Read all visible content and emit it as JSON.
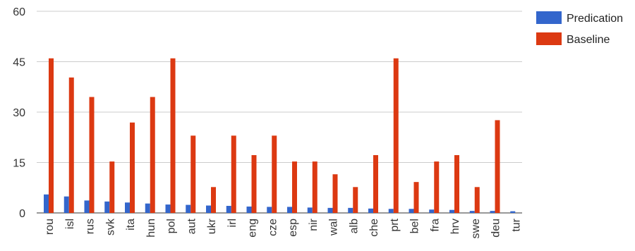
{
  "chart_data": {
    "type": "bar",
    "categories": [
      "rou",
      "isl",
      "rus",
      "svk",
      "ita",
      "hun",
      "pol",
      "aut",
      "ukr",
      "irl",
      "eng",
      "cze",
      "esp",
      "nir",
      "wal",
      "alb",
      "che",
      "prt",
      "bel",
      "fra",
      "hrv",
      "swe",
      "deu",
      "tur"
    ],
    "series": [
      {
        "name": "Predication",
        "color": "#3366cc",
        "values": [
          5.5,
          4.9,
          3.7,
          3.4,
          3.1,
          2.8,
          2.5,
          2.4,
          2.2,
          2.1,
          1.9,
          1.8,
          1.8,
          1.6,
          1.5,
          1.5,
          1.3,
          1.2,
          1.2,
          1.0,
          0.9,
          0.6,
          0.6,
          0.5
        ]
      },
      {
        "name": "Baseline",
        "color": "#dc3912",
        "values": [
          46,
          40.3,
          34.5,
          15.3,
          26.9,
          34.5,
          46,
          23,
          7.7,
          23,
          17.2,
          23,
          15.3,
          15.3,
          11.5,
          7.7,
          17.2,
          46,
          9.2,
          15.3,
          17.2,
          7.7,
          27.6,
          0
        ]
      }
    ],
    "yticks": [
      0,
      15,
      30,
      45,
      60
    ],
    "ylim": [
      0,
      60
    ],
    "grid": true,
    "legend": "right",
    "title": "",
    "xlabel": "",
    "ylabel": ""
  }
}
